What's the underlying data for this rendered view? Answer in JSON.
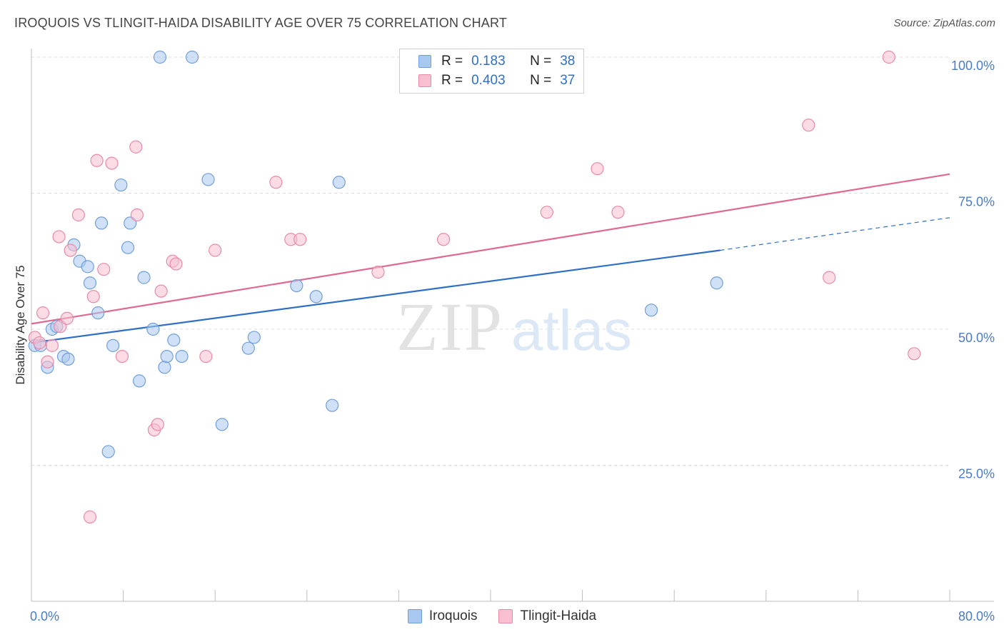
{
  "header": {
    "title": "IROQUOIS VS TLINGIT-HAIDA DISABILITY AGE OVER 75 CORRELATION CHART",
    "source": "Source: ZipAtlas.com"
  },
  "watermark": {
    "zip": "ZIP",
    "atlas": "atlas"
  },
  "legend": {
    "rows": [
      {
        "r_label": "R =",
        "r_value": "0.183",
        "n_label": "N =",
        "n_value": "38",
        "color": "#a9c8f0",
        "border": "#6f9fdc"
      },
      {
        "r_label": "R =",
        "r_value": "0.403",
        "n_label": "N =",
        "n_value": "37",
        "color": "#f7bfd0",
        "border": "#e98aa8"
      }
    ]
  },
  "bottom_legend": [
    {
      "label": "Iroquois",
      "color": "#a9c8f0",
      "border": "#6f9fdc"
    },
    {
      "label": "Tlingit-Haida",
      "color": "#f7bfd0",
      "border": "#e98aa8"
    }
  ],
  "chart_data": {
    "type": "scatter",
    "title": "IROQUOIS VS TLINGIT-HAIDA DISABILITY AGE OVER 75 CORRELATION CHART",
    "xlabel": "",
    "ylabel": "Disability Age Over 75",
    "xlim": [
      0,
      80
    ],
    "ylim": [
      0,
      100
    ],
    "x_tick_labels": [
      "0.0%",
      "80.0%"
    ],
    "y_ticks": [
      25,
      50,
      75,
      100
    ],
    "y_tick_labels": [
      "25.0%",
      "50.0%",
      "75.0%",
      "100.0%"
    ],
    "grid": true,
    "series": [
      {
        "name": "Iroquois",
        "color": "#6f9fdc",
        "fill": "#a9c8f0",
        "trend": {
          "x0": 0,
          "y0": 47.5,
          "x1": 60,
          "y1": 64.5,
          "dash_to_x": 80,
          "dash_to_y": 70.5,
          "color": "#2f6fc6"
        },
        "points": [
          [
            0.3,
            47.0
          ],
          [
            0.8,
            47.0
          ],
          [
            1.4,
            43.0
          ],
          [
            1.8,
            50.0
          ],
          [
            2.2,
            50.5
          ],
          [
            2.8,
            45.0
          ],
          [
            3.2,
            44.5
          ],
          [
            3.7,
            65.5
          ],
          [
            4.2,
            62.5
          ],
          [
            4.9,
            61.5
          ],
          [
            5.1,
            58.5
          ],
          [
            5.8,
            53.0
          ],
          [
            6.1,
            69.5
          ],
          [
            6.7,
            27.5
          ],
          [
            7.1,
            47.0
          ],
          [
            7.8,
            76.5
          ],
          [
            8.4,
            65.0
          ],
          [
            8.6,
            69.5
          ],
          [
            9.4,
            40.5
          ],
          [
            9.8,
            59.5
          ],
          [
            10.6,
            50.0
          ],
          [
            11.2,
            100.0
          ],
          [
            11.6,
            43.0
          ],
          [
            11.8,
            45.0
          ],
          [
            12.4,
            48.0
          ],
          [
            13.1,
            45.0
          ],
          [
            14.0,
            100.0
          ],
          [
            15.4,
            77.5
          ],
          [
            16.6,
            32.5
          ],
          [
            18.9,
            46.5
          ],
          [
            19.4,
            48.5
          ],
          [
            23.1,
            58.0
          ],
          [
            24.8,
            56.0
          ],
          [
            26.2,
            36.0
          ],
          [
            26.8,
            77.0
          ],
          [
            38.2,
            100.0
          ],
          [
            54.0,
            53.5
          ],
          [
            59.7,
            58.5
          ]
        ]
      },
      {
        "name": "Tlingit-Haida",
        "color": "#e98aa8",
        "fill": "#f7bfd0",
        "trend": {
          "x0": 0,
          "y0": 51.0,
          "x1": 80,
          "y1": 78.5,
          "color": "#e06892"
        },
        "points": [
          [
            0.3,
            48.5
          ],
          [
            0.7,
            47.5
          ],
          [
            1.0,
            53.0
          ],
          [
            1.4,
            44.0
          ],
          [
            1.8,
            47.0
          ],
          [
            2.4,
            67.0
          ],
          [
            2.5,
            50.5
          ],
          [
            3.1,
            52.0
          ],
          [
            3.4,
            64.5
          ],
          [
            4.1,
            71.0
          ],
          [
            5.1,
            15.5
          ],
          [
            5.4,
            56.0
          ],
          [
            5.7,
            81.0
          ],
          [
            6.3,
            61.0
          ],
          [
            7.0,
            80.5
          ],
          [
            7.9,
            45.0
          ],
          [
            9.1,
            83.5
          ],
          [
            9.2,
            71.0
          ],
          [
            10.7,
            31.5
          ],
          [
            11.0,
            32.5
          ],
          [
            11.3,
            57.0
          ],
          [
            12.3,
            62.5
          ],
          [
            12.6,
            62.0
          ],
          [
            15.2,
            45.0
          ],
          [
            16.0,
            64.5
          ],
          [
            21.3,
            77.0
          ],
          [
            22.6,
            66.5
          ],
          [
            23.4,
            66.5
          ],
          [
            30.2,
            60.5
          ],
          [
            35.9,
            66.5
          ],
          [
            44.9,
            71.5
          ],
          [
            49.3,
            79.5
          ],
          [
            51.1,
            71.5
          ],
          [
            67.7,
            87.5
          ],
          [
            69.5,
            59.5
          ],
          [
            74.7,
            100.0
          ],
          [
            76.9,
            45.5
          ]
        ]
      }
    ]
  }
}
